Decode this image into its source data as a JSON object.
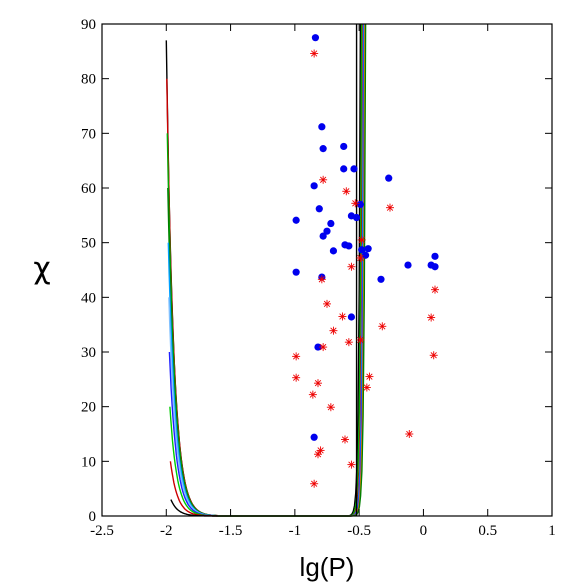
{
  "chart_data": {
    "type": "scatter",
    "title": "",
    "xlabel": "lg(P)",
    "ylabel": "χ",
    "xlim": [
      -2.5,
      1
    ],
    "ylim": [
      0,
      90
    ],
    "x_ticks": [
      -2.5,
      -2,
      -1.5,
      -1,
      -0.5,
      0,
      0.5,
      1
    ],
    "y_ticks": [
      0,
      10,
      20,
      30,
      40,
      50,
      60,
      70,
      80,
      90
    ],
    "x_tick_labels": [
      "-2.5",
      "-2",
      "-1.5",
      "-1",
      "-0.5",
      "0",
      "0.5",
      "1"
    ],
    "y_tick_labels": [
      "0",
      "10",
      "20",
      "30",
      "40",
      "50",
      "60",
      "70",
      "80",
      "90"
    ],
    "grid": false,
    "legend": "none",
    "left_curve_family": [
      {
        "color": "#000000",
        "start_chi": 87
      },
      {
        "color": "#cc0000",
        "start_chi": 80
      },
      {
        "color": "#00aa00",
        "start_chi": 70
      },
      {
        "color": "#008000",
        "start_chi": 60
      },
      {
        "color": "#00a0ff",
        "start_chi": 50
      },
      {
        "color": "#80c0ff",
        "start_chi": 40
      },
      {
        "color": "#2020ff",
        "start_chi": 30
      },
      {
        "color": "#00cc00",
        "start_chi": 20
      },
      {
        "color": "#cc0000",
        "start_chi": 10
      },
      {
        "color": "#000000",
        "start_chi": 3
      }
    ],
    "right_curve_family": [
      {
        "color": "#000000",
        "x_at_90": -0.49
      },
      {
        "color": "#00aa00",
        "x_at_90": -0.48
      },
      {
        "color": "#cc0000",
        "x_at_90": -0.47
      },
      {
        "color": "#00a0ff",
        "x_at_90": -0.465
      },
      {
        "color": "#2020ff",
        "x_at_90": -0.46
      },
      {
        "color": "#ff8000",
        "x_at_90": -0.455
      },
      {
        "color": "#008000",
        "x_at_90": -0.45
      }
    ],
    "vertical_line": {
      "x": -0.52,
      "color": "#000000"
    },
    "series": [
      {
        "marker": "circle",
        "color": "#0000ee",
        "points": [
          [
            -0.84,
            87.5
          ],
          [
            -0.79,
            71.2
          ],
          [
            -0.78,
            67.2
          ],
          [
            -0.62,
            67.6
          ],
          [
            -0.85,
            60.4
          ],
          [
            -0.62,
            63.5
          ],
          [
            -0.54,
            63.5
          ],
          [
            -0.27,
            61.8
          ],
          [
            -0.81,
            56.2
          ],
          [
            -0.49,
            57.0
          ],
          [
            -0.99,
            54.1
          ],
          [
            -0.56,
            54.9
          ],
          [
            -0.52,
            54.6
          ],
          [
            -0.72,
            53.5
          ],
          [
            -0.75,
            52.1
          ],
          [
            -0.78,
            51.2
          ],
          [
            -0.61,
            49.6
          ],
          [
            -0.58,
            49.4
          ],
          [
            -0.7,
            48.5
          ],
          [
            -0.48,
            48.7
          ],
          [
            -0.43,
            48.9
          ],
          [
            -0.45,
            47.7
          ],
          [
            0.09,
            47.5
          ],
          [
            -0.12,
            45.9
          ],
          [
            0.06,
            45.9
          ],
          [
            0.09,
            45.6
          ],
          [
            -0.99,
            44.6
          ],
          [
            -0.79,
            43.7
          ],
          [
            -0.33,
            43.3
          ],
          [
            -0.56,
            36.4
          ],
          [
            -0.82,
            30.9
          ],
          [
            -0.85,
            14.4
          ]
        ]
      },
      {
        "marker": "asterisk",
        "color": "#ee0000",
        "points": [
          [
            -0.85,
            84.6
          ],
          [
            -0.78,
            61.5
          ],
          [
            -0.6,
            59.4
          ],
          [
            -0.53,
            57.2
          ],
          [
            -0.26,
            56.4
          ],
          [
            -0.48,
            50.5
          ],
          [
            -0.49,
            47.2
          ],
          [
            -0.56,
            45.6
          ],
          [
            -0.79,
            43.3
          ],
          [
            0.09,
            41.4
          ],
          [
            -0.75,
            38.8
          ],
          [
            -0.63,
            36.5
          ],
          [
            0.06,
            36.3
          ],
          [
            -0.32,
            34.7
          ],
          [
            -0.7,
            33.9
          ],
          [
            -0.49,
            32.2
          ],
          [
            -0.58,
            31.8
          ],
          [
            -0.78,
            30.9
          ],
          [
            -0.99,
            29.2
          ],
          [
            0.08,
            29.4
          ],
          [
            -0.99,
            25.3
          ],
          [
            -0.42,
            25.5
          ],
          [
            -0.82,
            24.3
          ],
          [
            -0.44,
            23.5
          ],
          [
            -0.86,
            22.2
          ],
          [
            -0.72,
            19.9
          ],
          [
            -0.61,
            14.0
          ],
          [
            -0.11,
            15.0
          ],
          [
            -0.8,
            12.0
          ],
          [
            -0.82,
            11.3
          ],
          [
            -0.56,
            9.4
          ],
          [
            -0.85,
            5.9
          ]
        ]
      }
    ]
  }
}
